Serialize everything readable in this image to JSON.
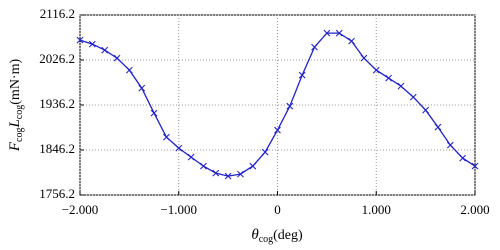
{
  "chart_data": {
    "type": "line",
    "xlabel": [
      "θ",
      "cog",
      "(deg)"
    ],
    "ylabel": [
      "F",
      "cog",
      "L",
      "cog",
      "(mN·m)"
    ],
    "x": [
      -2,
      -1.875,
      -1.75,
      -1.625,
      -1.5,
      -1.375,
      -1.25,
      -1.125,
      -1,
      -0.875,
      -0.75,
      -0.625,
      -0.5,
      -0.375,
      -0.25,
      -0.125,
      0,
      0.125,
      0.25,
      0.375,
      0.5,
      0.625,
      0.75,
      0.875,
      1,
      1.125,
      1.25,
      1.375,
      1.5,
      1.625,
      1.75,
      1.875,
      2
    ],
    "series": [
      {
        "color": "#2222c8",
        "values": [
          2066,
          2058,
          2046,
          2030,
          2006,
          1970,
          1920,
          1872,
          1850,
          1832,
          1814,
          1800,
          1794,
          1798,
          1814,
          1842,
          1886,
          1934,
          1996,
          2052,
          2080,
          2080,
          2064,
          2030,
          2006,
          1990,
          1974,
          1952,
          1926,
          1892,
          1856,
          1830,
          1814
        ]
      }
    ],
    "xlim": [
      -2,
      2
    ],
    "xticks": [
      {
        "value": -2,
        "label": "−2.000"
      },
      {
        "value": -1,
        "label": "−1.000"
      },
      0,
      {
        "value": 1,
        "label": "1.000"
      },
      {
        "value": 2,
        "label": "2.000"
      }
    ],
    "ylim": [
      1756.2,
      2116.2
    ],
    "yticks": [
      1756.2,
      1846.2,
      1936.2,
      2026.2,
      2116.2
    ],
    "grid": true,
    "marker": "x"
  }
}
